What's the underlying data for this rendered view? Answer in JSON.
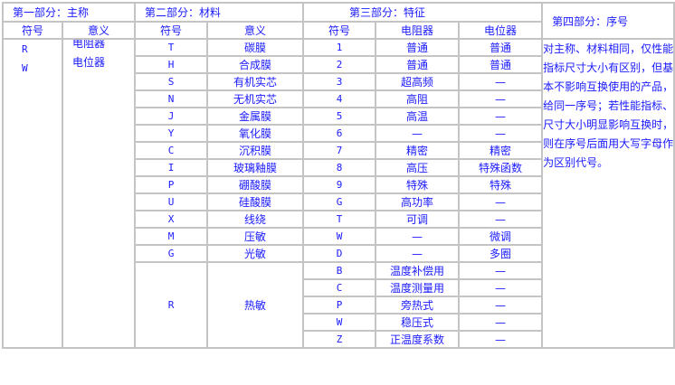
{
  "headers": {
    "part1": "第一部分：主称",
    "part2": "第二部分：材料",
    "part3": "第三部分：特征",
    "part4": "第四部分：序号",
    "symbol": "符号",
    "meaning": "意义",
    "resistor": "电阻器",
    "potentiometer": "电位器"
  },
  "part1": {
    "items": [
      {
        "code": "R",
        "meaning": "电阻器"
      },
      {
        "code": "W",
        "meaning": "电位器"
      }
    ]
  },
  "part4_text": "对主称、材料相同，仅性能指标尺寸大小有区别，但基本不影响互换使用的产品，给同一序号；若性能指标、尺寸大小明显影响互换时，则在序号后面用大写字母作为区别代号。",
  "materials": [
    {
      "code": "T",
      "meaning": "碳膜"
    },
    {
      "code": "H",
      "meaning": "合成膜"
    },
    {
      "code": "S",
      "meaning": "有机实芯"
    },
    {
      "code": "N",
      "meaning": "无机实芯"
    },
    {
      "code": "J",
      "meaning": "金属膜"
    },
    {
      "code": "Y",
      "meaning": "氧化膜"
    },
    {
      "code": "C",
      "meaning": "沉积膜"
    },
    {
      "code": "I",
      "meaning": "玻璃釉膜"
    },
    {
      "code": "P",
      "meaning": "硼酸膜"
    },
    {
      "code": "U",
      "meaning": "硅酸膜"
    },
    {
      "code": "X",
      "meaning": "线绕"
    },
    {
      "code": "M",
      "meaning": "压敏"
    },
    {
      "code": "G",
      "meaning": "光敏"
    },
    {
      "code": "R",
      "meaning": "热敏"
    }
  ],
  "features": [
    {
      "code": "1",
      "resistor": "普通",
      "potentiometer": "普通"
    },
    {
      "code": "2",
      "resistor": "普通",
      "potentiometer": "普通"
    },
    {
      "code": "3",
      "resistor": "超高频",
      "potentiometer": "—"
    },
    {
      "code": "4",
      "resistor": "高阻",
      "potentiometer": "—"
    },
    {
      "code": "5",
      "resistor": "高温",
      "potentiometer": "—"
    },
    {
      "code": "6",
      "resistor": "—",
      "potentiometer": "—"
    },
    {
      "code": "7",
      "resistor": "精密",
      "potentiometer": "精密"
    },
    {
      "code": "8",
      "resistor": "高压",
      "potentiometer": "特殊函数"
    },
    {
      "code": "9",
      "resistor": "特殊",
      "potentiometer": "特殊"
    },
    {
      "code": "G",
      "resistor": "高功率",
      "potentiometer": "—"
    },
    {
      "code": "T",
      "resistor": "可调",
      "potentiometer": "—"
    },
    {
      "code": "W",
      "resistor": "—",
      "potentiometer": "微调"
    },
    {
      "code": "D",
      "resistor": "—",
      "potentiometer": "多圈"
    },
    {
      "code": "B",
      "resistor": "温度补偿用",
      "potentiometer": "—"
    },
    {
      "code": "C",
      "resistor": "温度测量用",
      "potentiometer": "—"
    },
    {
      "code": "P",
      "resistor": "旁热式",
      "potentiometer": "—"
    },
    {
      "code": "W",
      "resistor": "稳压式",
      "potentiometer": "—"
    },
    {
      "code": "Z",
      "resistor": "正温度系数",
      "potentiometer": "—"
    }
  ]
}
